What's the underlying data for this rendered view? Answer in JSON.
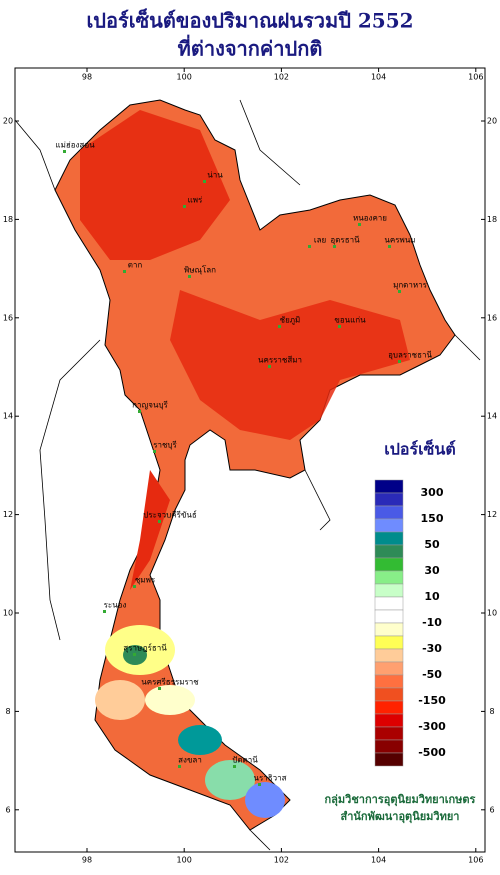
{
  "header": {
    "title_line1": "เปอร์เซ็นต์ของปริมาณฝนรวมปี 2552",
    "title_line2": "ที่ต่างจากค่าปกติ"
  },
  "map": {
    "lon_ticks": [
      98,
      100,
      102,
      104,
      106
    ],
    "lat_ticks": [
      6,
      8,
      10,
      12,
      14,
      16,
      18,
      20
    ],
    "places": [
      "แม่ฮ่องสอน",
      "น่าน",
      "แพร่",
      "หนองคาย",
      "อุดรธานี",
      "นครพนม",
      "เลย",
      "ตาก",
      "พิษณุโลก",
      "ขอนแก่น",
      "ชัยภูมิ",
      "มุกดาหาร",
      "นครราชสีมา",
      "อุบลราชธานี",
      "กาญจนบุรี",
      "ราชบุรี",
      "ประจวบคีรีขันธ์",
      "ชุมพร",
      "ระนอง",
      "สุราษฎร์ธานี",
      "นครศรีธรรมราช",
      "สงขลา",
      "ปัตตานี",
      "นราธิวาส"
    ]
  },
  "legend": {
    "title": "เปอร์เซ็นต์",
    "colors": [
      "#000088",
      "#2a2ab8",
      "#4a5ae6",
      "#6f8cff",
      "#008c8c",
      "#2e8b57",
      "#33bb33",
      "#88ee88",
      "#c8ffc8",
      "#ffffff",
      "#ffffff",
      "#ffffcc",
      "#ffff55",
      "#ffcc99",
      "#ffa070",
      "#ff7040",
      "#f05020",
      "#ff2200",
      "#dd0000",
      "#aa0000",
      "#880000",
      "#550000"
    ],
    "labels": [
      300,
      150,
      50,
      30,
      10,
      -10,
      -30,
      -50,
      -150,
      -300,
      -500
    ]
  },
  "credits": {
    "line1": "กลุ่มวิชาการอุตุนิยมวิทยาเกษตร",
    "line2": "สำนักพัฒนาอุตุนิยมวิทยา"
  }
}
